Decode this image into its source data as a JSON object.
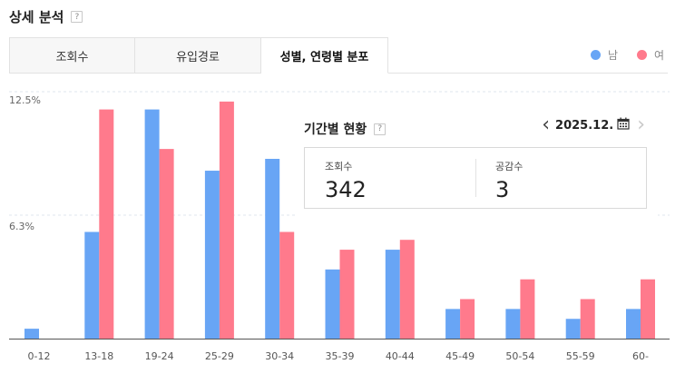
{
  "section": {
    "title": "상세 분석",
    "help": "?"
  },
  "tabs": [
    {
      "label": "조회수",
      "active": false
    },
    {
      "label": "유입경로",
      "active": false
    },
    {
      "label": "성별, 연령별 분포",
      "active": true
    }
  ],
  "legend": {
    "male": {
      "label": "남",
      "color": "#68a5f5"
    },
    "female": {
      "label": "여",
      "color": "#ff7a8c"
    }
  },
  "period_card": {
    "title": "기간별 현황",
    "help": "?",
    "period": "2025.12.",
    "icons": [
      "chevron-left-icon",
      "calendar-icon",
      "chevron-right-icon"
    ],
    "stats": [
      {
        "label": "조회수",
        "value": "342"
      },
      {
        "label": "공감수",
        "value": "3"
      }
    ]
  },
  "chart_data": {
    "type": "bar",
    "categories": [
      "0-12",
      "13-18",
      "19-24",
      "25-29",
      "30-34",
      "35-39",
      "40-44",
      "45-49",
      "50-54",
      "55-59",
      "60-"
    ],
    "series": [
      {
        "name": "남",
        "values": [
          0.5,
          5.4,
          11.6,
          8.5,
          9.1,
          3.5,
          4.5,
          1.5,
          1.5,
          1.0,
          1.5
        ]
      },
      {
        "name": "여",
        "values": [
          0,
          11.6,
          9.6,
          12.0,
          5.4,
          4.5,
          5.0,
          2.0,
          3.0,
          2.0,
          3.0
        ]
      }
    ],
    "y_ticks": [
      "12.5%",
      "6.3%"
    ],
    "ylim": [
      0,
      12.5
    ],
    "grid": true
  }
}
